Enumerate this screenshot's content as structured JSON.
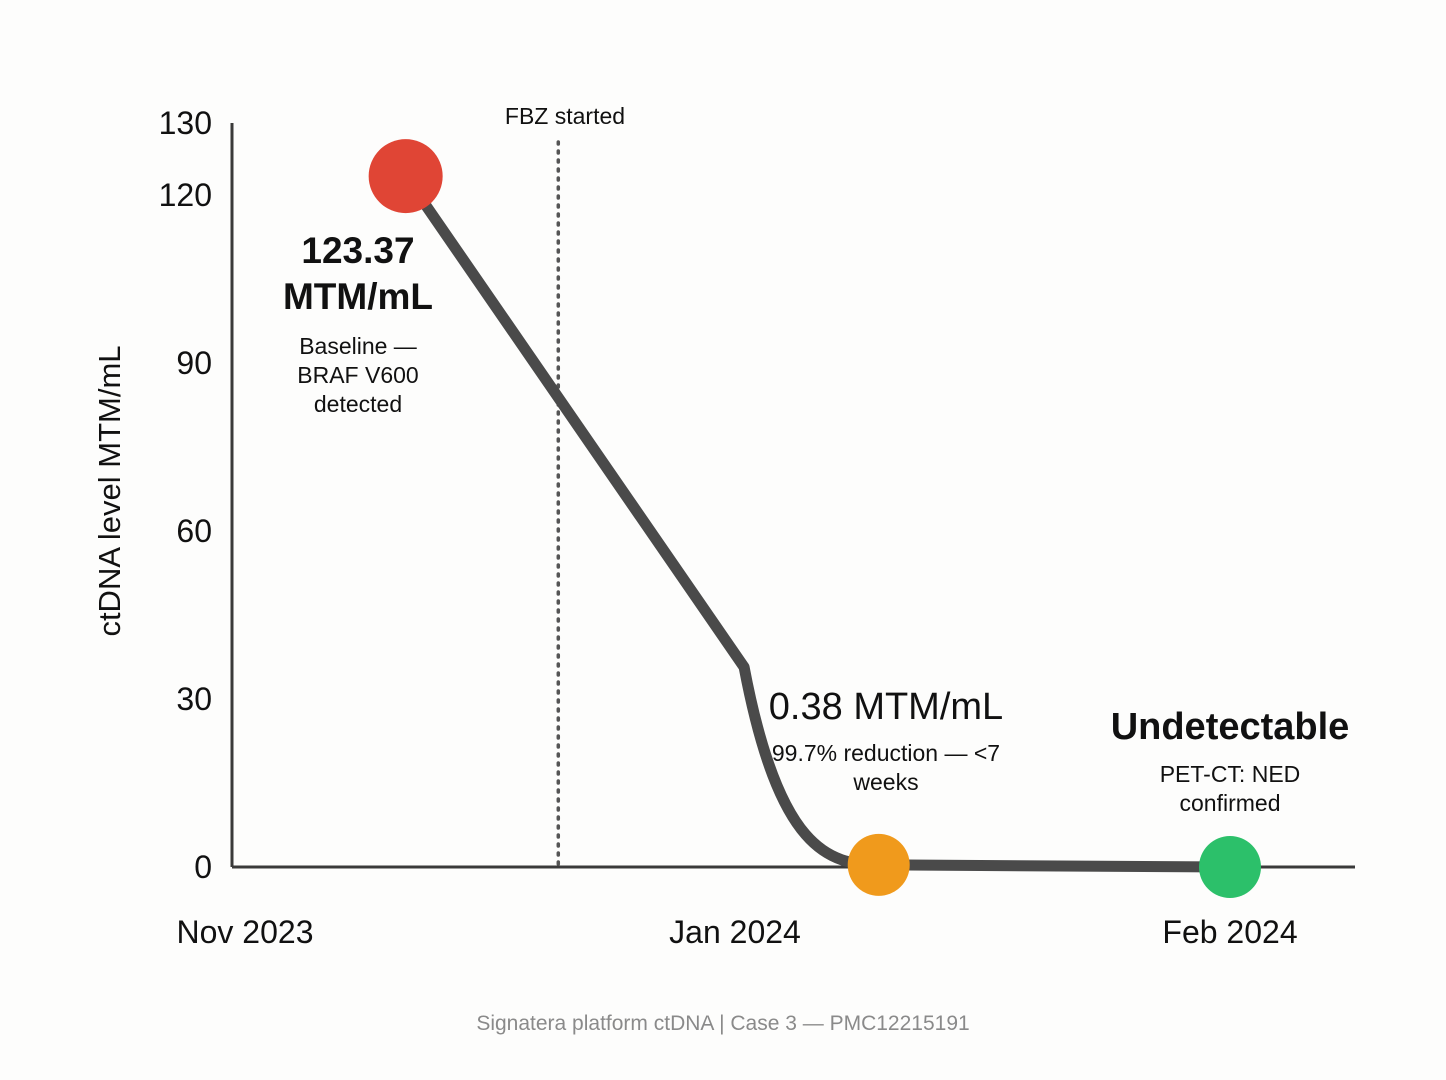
{
  "chart_data": {
    "type": "line",
    "ylabel": "ctDNA level MTM/mL",
    "ylim": [
      0,
      130
    ],
    "yticks": [
      0,
      30,
      60,
      90,
      120,
      130
    ],
    "xticks": [
      {
        "date": "2023-11-01",
        "label": "Nov 2023"
      },
      {
        "date": "2024-01-01",
        "label": "Jan 2024"
      },
      {
        "date": "2024-02-01",
        "label": "Feb 2024"
      }
    ],
    "grid": false,
    "points": [
      {
        "date": "2023-11-21",
        "value": 123.37,
        "color": "#e04535",
        "label": "123.37 MTM/mL",
        "note": "Baseline — BRAF V600 detected"
      },
      {
        "date": "2024-01-10",
        "value": 0.38,
        "color": "#f09a1c",
        "label": "0.38 MTM/mL",
        "note": "99.7% reduction — <7 weeks"
      },
      {
        "date": "2024-02-01",
        "value": 0,
        "color": "#2cc06a",
        "label": "Undetectable",
        "note": "PET-CT: NED confirmed"
      }
    ],
    "event": {
      "date": "2023-12-10",
      "label": "FBZ started"
    },
    "line_color": "#4a4a4a"
  },
  "footer": "Signatera platform ctDNA | Case 3 — PMC12215191"
}
